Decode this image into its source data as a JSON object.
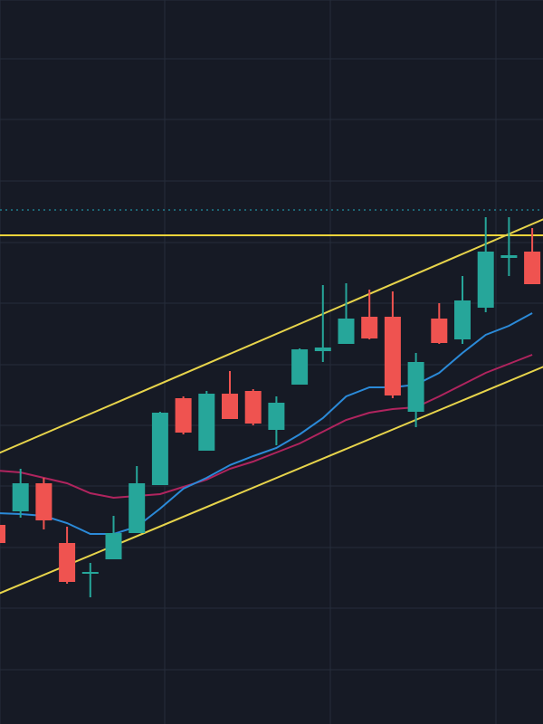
{
  "chart_data": {
    "type": "candlestick",
    "title": "",
    "xlabel": "",
    "ylabel": "",
    "grid": true,
    "ylim": [
      0,
      800
    ],
    "colors": {
      "background": "#161a25",
      "grid": "#262c3a",
      "up": "#26a69a",
      "down": "#ef5350",
      "horizontal_line": "#f2d43a",
      "dotted_level": "#26c6da",
      "channel": "#e7d44b",
      "ma_fast": "#2b8ad8",
      "ma_slow": "#b0245e"
    },
    "candles": [
      {
        "i": 0,
        "open": 220,
        "high": 228,
        "low": 200,
        "close": 200
      },
      {
        "i": 1,
        "open": 235,
        "high": 282,
        "low": 228,
        "close": 266
      },
      {
        "i": 2,
        "open": 266,
        "high": 272,
        "low": 215,
        "close": 225
      },
      {
        "i": 3,
        "open": 200,
        "high": 218,
        "low": 155,
        "close": 157
      },
      {
        "i": 4,
        "open": 168,
        "high": 178,
        "low": 140,
        "close": 168
      },
      {
        "i": 5,
        "open": 182,
        "high": 230,
        "low": 182,
        "close": 211
      },
      {
        "i": 6,
        "open": 211,
        "high": 285,
        "low": 211,
        "close": 266
      },
      {
        "i": 7,
        "open": 264,
        "high": 345,
        "low": 264,
        "close": 344
      },
      {
        "i": 8,
        "open": 360,
        "high": 362,
        "low": 320,
        "close": 322
      },
      {
        "i": 9,
        "open": 302,
        "high": 368,
        "low": 302,
        "close": 365
      },
      {
        "i": 10,
        "open": 365,
        "high": 390,
        "low": 338,
        "close": 337
      },
      {
        "i": 11,
        "open": 368,
        "high": 370,
        "low": 330,
        "close": 332
      },
      {
        "i": 12,
        "open": 325,
        "high": 362,
        "low": 308,
        "close": 355
      },
      {
        "i": 13,
        "open": 375,
        "high": 415,
        "low": 375,
        "close": 414
      },
      {
        "i": 14,
        "open": 412,
        "high": 485,
        "low": 400,
        "close": 416
      },
      {
        "i": 15,
        "open": 420,
        "high": 487,
        "low": 420,
        "close": 448
      },
      {
        "i": 16,
        "open": 450,
        "high": 480,
        "low": 425,
        "close": 426
      },
      {
        "i": 17,
        "open": 450,
        "high": 478,
        "low": 360,
        "close": 363
      },
      {
        "i": 18,
        "open": 345,
        "high": 410,
        "low": 328,
        "close": 400
      },
      {
        "i": 19,
        "open": 448,
        "high": 465,
        "low": 420,
        "close": 421
      },
      {
        "i": 20,
        "open": 425,
        "high": 495,
        "low": 420,
        "close": 468
      },
      {
        "i": 21,
        "open": 460,
        "high": 560,
        "low": 455,
        "close": 522
      },
      {
        "i": 22,
        "open": 515,
        "high": 560,
        "low": 495,
        "close": 518
      },
      {
        "i": 23,
        "open": 522,
        "high": 548,
        "low": 486,
        "close": 486
      }
    ],
    "horizontal_line": 540,
    "dotted_level": 568,
    "channel_upper": {
      "from": [
        -0.5,
        293
      ],
      "to": [
        23.5,
        558
      ]
    },
    "channel_lower": {
      "from": [
        -0.5,
        138
      ],
      "to": [
        23.5,
        395
      ]
    },
    "ma_fast": [
      233,
      232,
      230,
      222,
      210,
      210,
      218,
      238,
      260,
      272,
      286,
      296,
      305,
      320,
      338,
      362,
      372,
      372,
      375,
      388,
      410,
      430,
      440,
      454
    ],
    "ma_slow": [
      280,
      278,
      272,
      266,
      255,
      250,
      252,
      254,
      262,
      270,
      282,
      290,
      300,
      310,
      323,
      336,
      344,
      348,
      350,
      362,
      375,
      388,
      398,
      408
    ]
  }
}
